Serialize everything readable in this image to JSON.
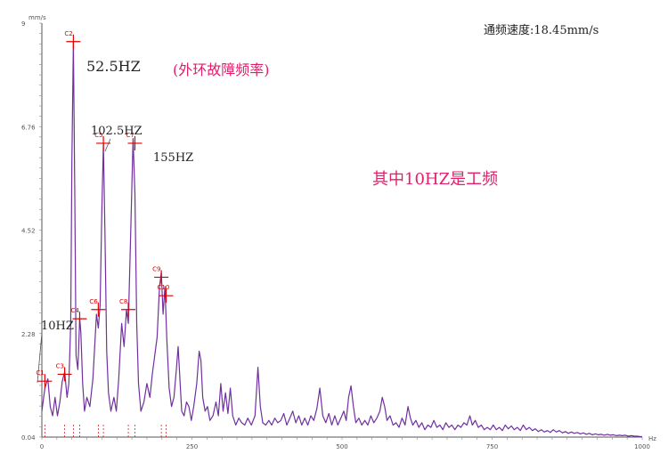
{
  "chart_data": {
    "type": "line",
    "title": "",
    "xlabel": "",
    "ylabel": "",
    "y_unit": "mm/s",
    "x_unit": "Hz",
    "xlim": [
      0,
      1000
    ],
    "ylim": [
      0.04,
      9
    ],
    "x_ticks": [
      "0",
      "250",
      "500",
      "750",
      "1000"
    ],
    "y_ticks": [
      "0.04",
      "2.28",
      "4.52",
      "6.76",
      "9"
    ],
    "series": [
      {
        "color": "#7030a0",
        "points": [
          [
            0,
            0.6
          ],
          [
            5,
            1.1
          ],
          [
            10,
            1.3
          ],
          [
            14,
            0.7
          ],
          [
            18,
            0.5
          ],
          [
            22,
            0.9
          ],
          [
            26,
            0.5
          ],
          [
            30,
            0.8
          ],
          [
            34,
            1.25
          ],
          [
            38,
            1.45
          ],
          [
            42,
            0.9
          ],
          [
            45,
            1.2
          ],
          [
            48,
            2.5
          ],
          [
            50,
            6.0
          ],
          [
            52.5,
            8.6
          ],
          [
            55,
            5.0
          ],
          [
            57,
            1.8
          ],
          [
            60,
            1.5
          ],
          [
            63,
            2.6
          ],
          [
            65,
            2.3
          ],
          [
            68,
            1.2
          ],
          [
            71,
            0.6
          ],
          [
            75,
            0.9
          ],
          [
            80,
            0.7
          ],
          [
            85,
            1.3
          ],
          [
            88,
            2.0
          ],
          [
            91,
            2.7
          ],
          [
            94,
            2.4
          ],
          [
            97,
            2.9
          ],
          [
            100,
            5.0
          ],
          [
            102.5,
            6.4
          ],
          [
            105,
            4.5
          ],
          [
            108,
            1.9
          ],
          [
            111,
            1.0
          ],
          [
            115,
            0.6
          ],
          [
            120,
            0.9
          ],
          [
            124,
            0.6
          ],
          [
            128,
            1.3
          ],
          [
            133,
            2.5
          ],
          [
            137,
            2.0
          ],
          [
            141,
            2.8
          ],
          [
            144,
            2.5
          ],
          [
            148,
            4.5
          ],
          [
            152,
            6.5
          ],
          [
            155,
            5.3
          ],
          [
            158,
            2.5
          ],
          [
            161,
            1.2
          ],
          [
            165,
            0.6
          ],
          [
            170,
            0.8
          ],
          [
            175,
            1.2
          ],
          [
            180,
            0.9
          ],
          [
            184,
            1.4
          ],
          [
            188,
            1.8
          ],
          [
            192,
            2.2
          ],
          [
            196,
            3.3
          ],
          [
            199,
            3.6
          ],
          [
            202,
            2.7
          ],
          [
            205,
            3.3
          ],
          [
            208,
            2.2
          ],
          [
            212,
            1.1
          ],
          [
            216,
            0.7
          ],
          [
            220,
            0.9
          ],
          [
            224,
            1.5
          ],
          [
            227,
            2.0
          ],
          [
            230,
            1.3
          ],
          [
            233,
            0.6
          ],
          [
            237,
            0.5
          ],
          [
            241,
            0.8
          ],
          [
            245,
            0.7
          ],
          [
            249,
            0.4
          ],
          [
            253,
            0.7
          ],
          [
            258,
            1.2
          ],
          [
            262,
            1.9
          ],
          [
            265,
            1.7
          ],
          [
            268,
            0.9
          ],
          [
            272,
            0.6
          ],
          [
            276,
            0.7
          ],
          [
            280,
            0.4
          ],
          [
            285,
            0.5
          ],
          [
            290,
            0.8
          ],
          [
            294,
            0.5
          ],
          [
            298,
            1.2
          ],
          [
            302,
            0.6
          ],
          [
            306,
            1.0
          ],
          [
            310,
            0.55
          ],
          [
            314,
            1.1
          ],
          [
            318,
            0.5
          ],
          [
            323,
            0.3
          ],
          [
            328,
            0.45
          ],
          [
            333,
            0.35
          ],
          [
            338,
            0.3
          ],
          [
            343,
            0.45
          ],
          [
            349,
            0.3
          ],
          [
            355,
            0.5
          ],
          [
            360,
            1.55
          ],
          [
            364,
            0.7
          ],
          [
            368,
            0.35
          ],
          [
            373,
            0.3
          ],
          [
            378,
            0.4
          ],
          [
            383,
            0.3
          ],
          [
            388,
            0.45
          ],
          [
            393,
            0.35
          ],
          [
            398,
            0.4
          ],
          [
            403,
            0.55
          ],
          [
            408,
            0.3
          ],
          [
            413,
            0.45
          ],
          [
            418,
            0.6
          ],
          [
            423,
            0.35
          ],
          [
            428,
            0.5
          ],
          [
            433,
            0.3
          ],
          [
            438,
            0.45
          ],
          [
            443,
            0.3
          ],
          [
            448,
            0.5
          ],
          [
            453,
            0.4
          ],
          [
            458,
            0.65
          ],
          [
            463,
            1.1
          ],
          [
            468,
            0.5
          ],
          [
            473,
            0.35
          ],
          [
            478,
            0.55
          ],
          [
            483,
            0.3
          ],
          [
            488,
            0.5
          ],
          [
            493,
            0.3
          ],
          [
            498,
            0.45
          ],
          [
            503,
            0.6
          ],
          [
            507,
            0.4
          ],
          [
            511,
            0.9
          ],
          [
            515,
            1.15
          ],
          [
            519,
            0.7
          ],
          [
            523,
            0.35
          ],
          [
            528,
            0.45
          ],
          [
            533,
            0.3
          ],
          [
            538,
            0.4
          ],
          [
            543,
            0.3
          ],
          [
            548,
            0.5
          ],
          [
            553,
            0.35
          ],
          [
            558,
            0.45
          ],
          [
            563,
            0.6
          ],
          [
            567,
            0.9
          ],
          [
            571,
            0.7
          ],
          [
            575,
            0.4
          ],
          [
            580,
            0.5
          ],
          [
            585,
            0.3
          ],
          [
            590,
            0.35
          ],
          [
            595,
            0.25
          ],
          [
            600,
            0.45
          ],
          [
            605,
            0.3
          ],
          [
            610,
            0.7
          ],
          [
            614,
            0.45
          ],
          [
            618,
            0.3
          ],
          [
            623,
            0.4
          ],
          [
            628,
            0.25
          ],
          [
            633,
            0.35
          ],
          [
            638,
            0.2
          ],
          [
            643,
            0.3
          ],
          [
            648,
            0.25
          ],
          [
            653,
            0.4
          ],
          [
            658,
            0.25
          ],
          [
            663,
            0.3
          ],
          [
            668,
            0.2
          ],
          [
            673,
            0.35
          ],
          [
            678,
            0.25
          ],
          [
            683,
            0.3
          ],
          [
            688,
            0.2
          ],
          [
            693,
            0.3
          ],
          [
            698,
            0.25
          ],
          [
            703,
            0.35
          ],
          [
            708,
            0.3
          ],
          [
            713,
            0.5
          ],
          [
            717,
            0.3
          ],
          [
            722,
            0.4
          ],
          [
            727,
            0.25
          ],
          [
            732,
            0.3
          ],
          [
            737,
            0.2
          ],
          [
            742,
            0.25
          ],
          [
            747,
            0.2
          ],
          [
            752,
            0.3
          ],
          [
            757,
            0.2
          ],
          [
            762,
            0.25
          ],
          [
            767,
            0.18
          ],
          [
            772,
            0.3
          ],
          [
            777,
            0.22
          ],
          [
            782,
            0.28
          ],
          [
            787,
            0.2
          ],
          [
            792,
            0.25
          ],
          [
            797,
            0.18
          ],
          [
            802,
            0.3
          ],
          [
            807,
            0.2
          ],
          [
            812,
            0.25
          ],
          [
            817,
            0.18
          ],
          [
            822,
            0.22
          ],
          [
            827,
            0.16
          ],
          [
            832,
            0.2
          ],
          [
            837,
            0.15
          ],
          [
            842,
            0.18
          ],
          [
            847,
            0.14
          ],
          [
            852,
            0.2
          ],
          [
            857,
            0.15
          ],
          [
            862,
            0.18
          ],
          [
            867,
            0.13
          ],
          [
            872,
            0.16
          ],
          [
            877,
            0.12
          ],
          [
            882,
            0.15
          ],
          [
            887,
            0.12
          ],
          [
            892,
            0.14
          ],
          [
            897,
            0.11
          ],
          [
            902,
            0.13
          ],
          [
            907,
            0.1
          ],
          [
            912,
            0.12
          ],
          [
            917,
            0.09
          ],
          [
            922,
            0.11
          ],
          [
            927,
            0.09
          ],
          [
            932,
            0.1
          ],
          [
            937,
            0.08
          ],
          [
            942,
            0.1
          ],
          [
            947,
            0.08
          ],
          [
            952,
            0.09
          ],
          [
            957,
            0.07
          ],
          [
            962,
            0.08
          ],
          [
            967,
            0.07
          ],
          [
            972,
            0.08
          ],
          [
            977,
            0.06
          ],
          [
            982,
            0.07
          ],
          [
            987,
            0.06
          ],
          [
            992,
            0.06
          ],
          [
            997,
            0.05
          ],
          [
            1000,
            0.05
          ]
        ]
      }
    ],
    "cursors": [
      {
        "label": "C1",
        "x": 5,
        "y": 1.25
      },
      {
        "label": "C2",
        "x": 52.5,
        "y": 8.6
      },
      {
        "label": "C3",
        "x": 38,
        "y": 1.4
      },
      {
        "label": "C4",
        "x": 63,
        "y": 2.6
      },
      {
        "label": "C5",
        "x": 102.5,
        "y": 6.4
      },
      {
        "label": "C6",
        "x": 94,
        "y": 2.8
      },
      {
        "label": "C7",
        "x": 155,
        "y": 6.4
      },
      {
        "label": "C8",
        "x": 144,
        "y": 2.8
      },
      {
        "label": "C9",
        "x": 199,
        "y": 3.5
      },
      {
        "label": "C10",
        "x": 207,
        "y": 3.1
      }
    ],
    "annotations": {
      "overall_velocity": "通频速度:18.45mm/s",
      "peak_52": "52.5HZ",
      "fault_note": "(外环故障频率)",
      "peak_102": "102.5HZ",
      "peak_155": "155HZ",
      "peak_10": "10HZ",
      "power_freq_note": "其中10HZ是工频"
    },
    "colors": {
      "line": "#7030a0",
      "cursor": "#e00000",
      "note": "#e0206a"
    }
  }
}
